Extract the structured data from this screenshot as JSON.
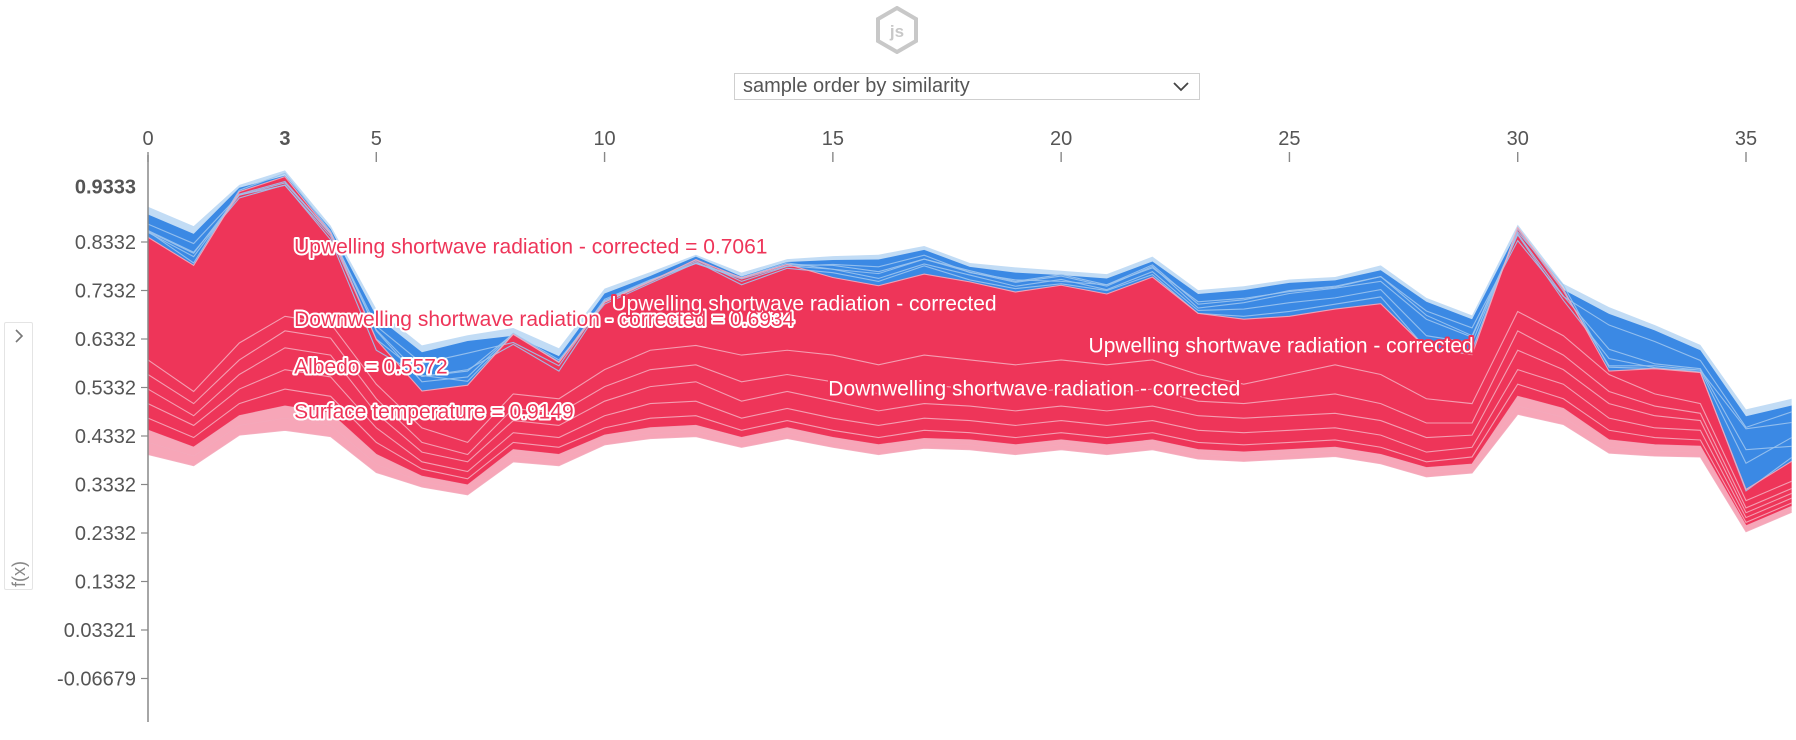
{
  "header": {
    "logo": "js"
  },
  "order_select": {
    "value": "sample order by similarity",
    "icon": "chevron-down-icon"
  },
  "sidebar": {
    "toggle_icon": "chevron-right-icon",
    "axis_label": "f(x)"
  },
  "colors": {
    "positive": "#ee3559",
    "negative": "#3b89e4",
    "positive_light": "#f7a6b8",
    "negative_light": "#c2dcf5"
  },
  "chart_data": {
    "type": "area",
    "x_ticks": [
      "0",
      "5",
      "10",
      "15",
      "20",
      "25",
      "30",
      "35"
    ],
    "x_tick_values": [
      0,
      5,
      10,
      15,
      20,
      25,
      30,
      35
    ],
    "highlight_x": {
      "value": 3,
      "label": "3"
    },
    "y_ticks": [
      "0.8332",
      "0.7332",
      "0.6332",
      "0.5332",
      "0.4332",
      "0.3332",
      "0.2332",
      "0.1332",
      "0.03321",
      "-0.06679"
    ],
    "y_tick_values": [
      0.8332,
      0.7332,
      0.6332,
      0.5332,
      0.4332,
      0.3332,
      0.2332,
      0.1332,
      0.03321,
      -0.06679
    ],
    "highlight_y": {
      "value": 0.9333,
      "label": "0.9333"
    },
    "xlim": [
      0,
      36
    ],
    "ylim": [
      -0.15,
      1.0
    ],
    "x": [
      0,
      1,
      2,
      3,
      4,
      5,
      6,
      7,
      8,
      9,
      10,
      11,
      12,
      13,
      14,
      15,
      16,
      17,
      18,
      19,
      20,
      21,
      22,
      23,
      24,
      25,
      26,
      27,
      28,
      29,
      30,
      31,
      32,
      33,
      34,
      35,
      36
    ],
    "series": [
      {
        "name": "",
        "values": [
          0.906,
          0.866,
          0.951,
          0.981,
          0.867,
          0.695,
          0.62,
          0.641,
          0.656,
          0.614,
          0.737,
          0.771,
          0.807,
          0.77,
          0.798,
          0.804,
          0.807,
          0.825,
          0.79,
          0.781,
          0.774,
          0.767,
          0.803,
          0.734,
          0.742,
          0.756,
          0.761,
          0.785,
          0.718,
          0.682,
          0.869,
          0.747,
          0.699,
          0.662,
          0.621,
          0.488,
          0.51
        ]
      },
      {
        "name": "",
        "values": [
          0.89,
          0.85,
          0.945,
          0.97,
          0.86,
          0.68,
          0.606,
          0.629,
          0.64,
          0.598,
          0.727,
          0.763,
          0.803,
          0.762,
          0.792,
          0.796,
          0.797,
          0.817,
          0.782,
          0.77,
          0.765,
          0.758,
          0.793,
          0.726,
          0.734,
          0.749,
          0.754,
          0.775,
          0.71,
          0.674,
          0.857,
          0.735,
          0.685,
          0.651,
          0.61,
          0.474,
          0.496
        ]
      },
      {
        "name": "",
        "values": [
          0.87,
          0.83,
          0.93,
          0.955,
          0.85,
          0.66,
          0.583,
          0.604,
          0.626,
          0.578,
          0.712,
          0.752,
          0.796,
          0.752,
          0.783,
          0.787,
          0.782,
          0.806,
          0.77,
          0.755,
          0.752,
          0.745,
          0.78,
          0.71,
          0.717,
          0.731,
          0.74,
          0.762,
          0.691,
          0.656,
          0.836,
          0.721,
          0.662,
          0.628,
          0.589,
          0.451,
          0.483
        ]
      },
      {
        "name": "",
        "values": [
          0.857,
          0.812,
          0.924,
          0.951,
          0.838,
          0.61,
          0.556,
          0.57,
          0.622,
          0.567,
          0.709,
          0.751,
          0.793,
          0.745,
          0.779,
          0.77,
          0.752,
          0.784,
          0.755,
          0.737,
          0.747,
          0.733,
          0.766,
          0.686,
          0.68,
          0.69,
          0.705,
          0.72,
          0.613,
          0.61,
          0.86,
          0.732,
          0.578,
          0.578,
          0.569,
          0.448,
          0.461
        ]
      },
      {
        "name": "",
        "values": [
          0.853,
          0.803,
          0.93,
          0.95,
          0.845,
          0.633,
          0.558,
          0.546,
          0.643,
          0.586,
          0.712,
          0.754,
          0.789,
          0.757,
          0.784,
          0.777,
          0.768,
          0.798,
          0.771,
          0.75,
          0.763,
          0.742,
          0.783,
          0.697,
          0.708,
          0.727,
          0.738,
          0.752,
          0.674,
          0.637,
          0.848,
          0.713,
          0.593,
          0.574,
          0.565,
          0.32,
          0.389
        ]
      },
      {
        "name": "",
        "values": [
          0.855,
          0.81,
          0.932,
          0.958,
          0.85,
          0.652,
          0.556,
          0.567,
          0.644,
          0.585,
          0.715,
          0.755,
          0.789,
          0.76,
          0.787,
          0.785,
          0.772,
          0.798,
          0.774,
          0.752,
          0.766,
          0.745,
          0.786,
          0.705,
          0.714,
          0.733,
          0.742,
          0.762,
          0.682,
          0.64,
          0.85,
          0.722,
          0.612,
          0.582,
          0.572,
          0.405,
          0.412
        ]
      },
      {
        "name": "",
        "values": [
          0.855,
          0.79,
          0.94,
          0.975,
          0.855,
          0.65,
          0.545,
          0.555,
          0.645,
          0.59,
          0.705,
          0.748,
          0.79,
          0.76,
          0.79,
          0.777,
          0.758,
          0.788,
          0.765,
          0.742,
          0.756,
          0.735,
          0.772,
          0.692,
          0.695,
          0.708,
          0.718,
          0.735,
          0.64,
          0.625,
          0.854,
          0.744,
          0.575,
          0.572,
          0.569,
          0.377,
          0.43
        ]
      },
      {
        "name": "",
        "values": [
          0.843,
          0.785,
          0.937,
          0.968,
          0.852,
          0.632,
          0.526,
          0.538,
          0.643,
          0.585,
          0.709,
          0.752,
          0.797,
          0.759,
          0.787,
          0.76,
          0.743,
          0.767,
          0.751,
          0.73,
          0.744,
          0.726,
          0.761,
          0.686,
          0.674,
          0.68,
          0.695,
          0.706,
          0.614,
          0.601,
          0.863,
          0.736,
          0.567,
          0.572,
          0.564,
          0.323,
          0.381
        ]
      },
      {
        "name": "",
        "values": [
          0.59,
          0.525,
          0.625,
          0.68,
          0.665,
          0.54,
          0.45,
          0.42,
          0.52,
          0.51,
          0.57,
          0.61,
          0.62,
          0.6,
          0.61,
          0.6,
          0.58,
          0.6,
          0.59,
          0.58,
          0.59,
          0.58,
          0.59,
          0.56,
          0.54,
          0.56,
          0.58,
          0.56,
          0.51,
          0.5,
          0.69,
          0.64,
          0.56,
          0.52,
          0.5,
          0.3,
          0.34
        ]
      },
      {
        "name": "",
        "values": [
          0.56,
          0.5,
          0.59,
          0.65,
          0.635,
          0.51,
          0.42,
          0.395,
          0.49,
          0.48,
          0.535,
          0.57,
          0.58,
          0.545,
          0.56,
          0.545,
          0.52,
          0.54,
          0.53,
          0.52,
          0.53,
          0.52,
          0.53,
          0.505,
          0.5,
          0.51,
          0.52,
          0.5,
          0.46,
          0.46,
          0.65,
          0.6,
          0.525,
          0.495,
          0.48,
          0.285,
          0.325
        ]
      },
      {
        "name": "",
        "values": [
          0.53,
          0.475,
          0.56,
          0.615,
          0.6,
          0.48,
          0.4,
          0.38,
          0.465,
          0.455,
          0.505,
          0.535,
          0.545,
          0.505,
          0.525,
          0.505,
          0.485,
          0.5,
          0.495,
          0.485,
          0.495,
          0.485,
          0.495,
          0.475,
          0.47,
          0.475,
          0.48,
          0.465,
          0.43,
          0.435,
          0.61,
          0.57,
          0.5,
          0.475,
          0.465,
          0.275,
          0.315
        ]
      },
      {
        "name": "",
        "values": [
          0.5,
          0.455,
          0.53,
          0.57,
          0.555,
          0.45,
          0.38,
          0.36,
          0.44,
          0.43,
          0.475,
          0.5,
          0.505,
          0.47,
          0.49,
          0.47,
          0.455,
          0.47,
          0.465,
          0.455,
          0.465,
          0.455,
          0.465,
          0.445,
          0.44,
          0.445,
          0.45,
          0.435,
          0.4,
          0.41,
          0.57,
          0.54,
          0.47,
          0.45,
          0.445,
          0.265,
          0.305
        ]
      },
      {
        "name": "",
        "values": [
          0.47,
          0.43,
          0.5,
          0.53,
          0.515,
          0.42,
          0.365,
          0.345,
          0.42,
          0.41,
          0.45,
          0.47,
          0.475,
          0.445,
          0.465,
          0.445,
          0.43,
          0.445,
          0.44,
          0.43,
          0.44,
          0.43,
          0.44,
          0.42,
          0.415,
          0.42,
          0.425,
          0.41,
          0.38,
          0.39,
          0.54,
          0.51,
          0.445,
          0.43,
          0.425,
          0.255,
          0.295
        ]
      },
      {
        "name": "",
        "values": [
          0.445,
          0.41,
          0.475,
          0.495,
          0.48,
          0.395,
          0.35,
          0.332,
          0.405,
          0.395,
          0.435,
          0.45,
          0.455,
          0.43,
          0.45,
          0.43,
          0.415,
          0.428,
          0.425,
          0.415,
          0.425,
          0.415,
          0.425,
          0.405,
          0.4,
          0.405,
          0.41,
          0.395,
          0.368,
          0.375,
          0.515,
          0.49,
          0.425,
          0.415,
          0.412,
          0.248,
          0.288
        ]
      },
      {
        "name": "",
        "values": [
          0.42,
          0.392,
          0.455,
          0.47,
          0.455,
          0.375,
          0.338,
          0.322,
          0.392,
          0.382,
          0.425,
          0.438,
          0.442,
          0.42,
          0.438,
          0.42,
          0.405,
          0.418,
          0.415,
          0.405,
          0.415,
          0.405,
          0.415,
          0.395,
          0.39,
          0.395,
          0.4,
          0.385,
          0.358,
          0.365,
          0.495,
          0.472,
          0.41,
          0.402,
          0.4,
          0.242,
          0.282
        ]
      },
      {
        "name": "",
        "values": [
          0.395,
          0.372,
          0.435,
          0.445,
          0.432,
          0.358,
          0.328,
          0.312,
          0.38,
          0.372,
          0.415,
          0.428,
          0.432,
          0.41,
          0.428,
          0.41,
          0.395,
          0.408,
          0.405,
          0.395,
          0.405,
          0.395,
          0.405,
          0.386,
          0.381,
          0.386,
          0.391,
          0.376,
          0.349,
          0.357,
          0.478,
          0.457,
          0.398,
          0.392,
          0.39,
          0.236,
          0.276
        ]
      }
    ],
    "annotations": [
      {
        "text": "Upwelling shortwave radiation - corrected = 0.7061",
        "x": 3.2,
        "y": 0.81,
        "color": "#ee3559",
        "halo": "#ffffff"
      },
      {
        "text": "Downwelling shortwave radiation - corrected = 0.6934",
        "x": 3.2,
        "y": 0.66,
        "color": "#ee3559",
        "halo": "#ffffff"
      },
      {
        "text": "Albedo = 0.5572",
        "x": 3.2,
        "y": 0.562,
        "color": "#ee3559",
        "halo": "#ffffff"
      },
      {
        "text": "Surface temperature = 0.9149",
        "x": 3.2,
        "y": 0.469,
        "color": "#ee3559",
        "halo": "#ffffff"
      },
      {
        "text": "Upwelling shortwave radiation - corrected",
        "x": 10.15,
        "y": 0.692,
        "color": "#ffffff",
        "halo": "#ee3559"
      },
      {
        "text": "Upwelling shortwave radiation - corrected",
        "x": 20.6,
        "y": 0.605,
        "color": "#ffffff",
        "halo": "#ee3559"
      },
      {
        "text": "Downwelling shortwave radiation - corrected",
        "x": 14.9,
        "y": 0.517,
        "color": "#ffffff",
        "halo": "#ee3559"
      }
    ]
  }
}
